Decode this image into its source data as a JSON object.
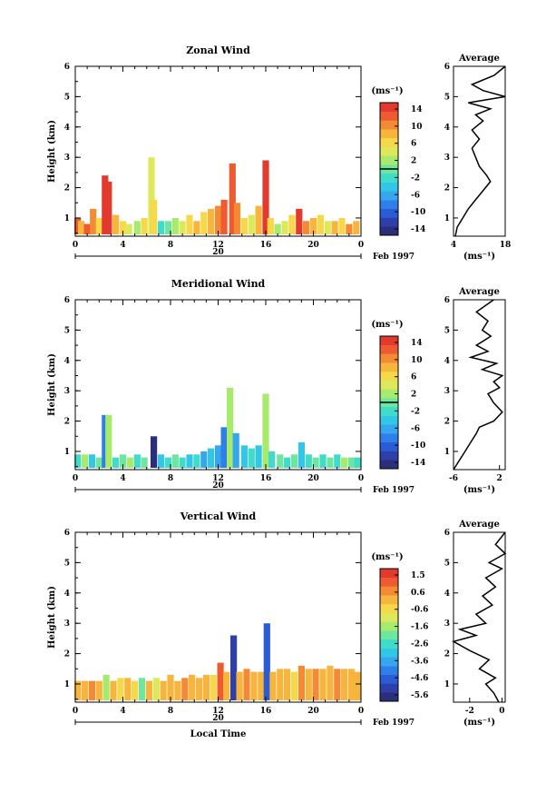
{
  "colormap": [
    "#2b2f7a",
    "#2d3fa8",
    "#2a5cd6",
    "#2f7fe8",
    "#36a7ef",
    "#33c6e6",
    "#40dcc9",
    "#6fe6a0",
    "#a8ea6c",
    "#dde85a",
    "#f6d84a",
    "#f8b53e",
    "#f58a35",
    "#ee5b30",
    "#e23a2d"
  ],
  "common": {
    "month_label": "Feb 1997",
    "day_label": "20",
    "unit_label": "(ms⁻¹)",
    "avg_title": "Average",
    "y_axis_label": "Height (km)",
    "x_axis_label": "Local Time",
    "x_ticks": [
      "0",
      "4",
      "8",
      "12",
      "16",
      "20",
      "0"
    ],
    "y_ticks": [
      "1",
      "2",
      "3",
      "4",
      "5",
      "6"
    ]
  },
  "chart_data": [
    {
      "type": "heatmap",
      "title": "Zonal Wind",
      "ylabel": "Height (km)",
      "xlim": [
        0,
        24
      ],
      "ylim": [
        0.4,
        6
      ],
      "colorbar": {
        "range": [
          -16,
          16
        ],
        "ticks": [
          "14",
          "10",
          "6",
          "2",
          "-2",
          "-6",
          "-10",
          "-14"
        ],
        "marker_value": 0
      },
      "columns": [
        {
          "t": 0.2,
          "top": 1.0,
          "v": 12
        },
        {
          "t": 0.5,
          "top": 0.9,
          "v": 8
        },
        {
          "t": 1.0,
          "top": 0.8,
          "v": 12
        },
        {
          "t": 1.5,
          "top": 1.3,
          "v": 10
        },
        {
          "t": 2.0,
          "top": 1.0,
          "v": 6
        },
        {
          "t": 2.5,
          "top": 2.4,
          "v": 15
        },
        {
          "t": 2.8,
          "top": 2.2,
          "v": 14
        },
        {
          "t": 3.4,
          "top": 1.1,
          "v": 8
        },
        {
          "t": 4.0,
          "top": 0.9,
          "v": 6
        },
        {
          "t": 4.5,
          "top": 0.8,
          "v": 4
        },
        {
          "t": 5.2,
          "top": 0.9,
          "v": 2
        },
        {
          "t": 5.8,
          "top": 1.0,
          "v": 6
        },
        {
          "t": 6.4,
          "top": 3.0,
          "v": 4
        },
        {
          "t": 6.6,
          "top": 1.6,
          "v": 6
        },
        {
          "t": 7.2,
          "top": 0.9,
          "v": -2
        },
        {
          "t": 7.8,
          "top": 0.9,
          "v": 0
        },
        {
          "t": 8.4,
          "top": 1.0,
          "v": 2
        },
        {
          "t": 9.0,
          "top": 0.9,
          "v": 4
        },
        {
          "t": 9.6,
          "top": 1.1,
          "v": 6
        },
        {
          "t": 10.2,
          "top": 0.9,
          "v": 8
        },
        {
          "t": 10.8,
          "top": 1.2,
          "v": 6
        },
        {
          "t": 11.4,
          "top": 1.3,
          "v": 8
        },
        {
          "t": 12.0,
          "top": 1.4,
          "v": 10
        },
        {
          "t": 12.5,
          "top": 1.6,
          "v": 12
        },
        {
          "t": 13.2,
          "top": 2.8,
          "v": 13
        },
        {
          "t": 13.6,
          "top": 1.5,
          "v": 10
        },
        {
          "t": 14.2,
          "top": 1.0,
          "v": 6
        },
        {
          "t": 14.8,
          "top": 1.1,
          "v": 4
        },
        {
          "t": 15.4,
          "top": 1.4,
          "v": 8
        },
        {
          "t": 16.0,
          "top": 2.9,
          "v": 14
        },
        {
          "t": 16.4,
          "top": 1.0,
          "v": 6
        },
        {
          "t": 17.0,
          "top": 0.8,
          "v": 2
        },
        {
          "t": 17.6,
          "top": 0.9,
          "v": 4
        },
        {
          "t": 18.2,
          "top": 1.1,
          "v": 6
        },
        {
          "t": 18.8,
          "top": 1.3,
          "v": 14
        },
        {
          "t": 19.4,
          "top": 0.9,
          "v": 10
        },
        {
          "t": 20.0,
          "top": 1.0,
          "v": 8
        },
        {
          "t": 20.6,
          "top": 1.1,
          "v": 6
        },
        {
          "t": 21.2,
          "top": 0.9,
          "v": 4
        },
        {
          "t": 21.8,
          "top": 0.9,
          "v": 8
        },
        {
          "t": 22.4,
          "top": 1.0,
          "v": 6
        },
        {
          "t": 23.0,
          "top": 0.8,
          "v": 10
        },
        {
          "t": 23.6,
          "top": 0.9,
          "v": 8
        }
      ],
      "profile": {
        "title": "Average",
        "xlabel": "(ms⁻¹)",
        "xlim": [
          4,
          18
        ],
        "xticks": [
          "4",
          "18"
        ],
        "points": [
          [
            4.5,
            0.4
          ],
          [
            5,
            0.7
          ],
          [
            6.5,
            1.0
          ],
          [
            8,
            1.3
          ],
          [
            10,
            1.6
          ],
          [
            12,
            1.9
          ],
          [
            14,
            2.2
          ],
          [
            13,
            2.4
          ],
          [
            11,
            2.7
          ],
          [
            10,
            3.0
          ],
          [
            9,
            3.3
          ],
          [
            11,
            3.6
          ],
          [
            9,
            3.9
          ],
          [
            12,
            4.2
          ],
          [
            10,
            4.4
          ],
          [
            14,
            4.6
          ],
          [
            8,
            4.8
          ],
          [
            18,
            5.0
          ],
          [
            12,
            5.2
          ],
          [
            9,
            5.4
          ],
          [
            15,
            5.7
          ],
          [
            18,
            6.0
          ]
        ]
      }
    },
    {
      "type": "heatmap",
      "title": "Meridional Wind",
      "ylabel": "Height (km)",
      "xlim": [
        0,
        24
      ],
      "ylim": [
        0.4,
        6
      ],
      "colorbar": {
        "range": [
          -16,
          16
        ],
        "ticks": [
          "14",
          "10",
          "6",
          "2",
          "-2",
          "-6",
          "-10",
          "-14"
        ],
        "marker_value": 0
      },
      "columns": [
        {
          "t": 0.2,
          "top": 0.9,
          "v": -2
        },
        {
          "t": 0.8,
          "top": 0.9,
          "v": 2
        },
        {
          "t": 1.4,
          "top": 0.9,
          "v": -4
        },
        {
          "t": 2.0,
          "top": 0.8,
          "v": 0
        },
        {
          "t": 2.5,
          "top": 2.2,
          "v": -8
        },
        {
          "t": 2.8,
          "top": 2.2,
          "v": 2
        },
        {
          "t": 3.4,
          "top": 0.8,
          "v": -2
        },
        {
          "t": 4.0,
          "top": 0.9,
          "v": 0
        },
        {
          "t": 4.6,
          "top": 0.8,
          "v": 2
        },
        {
          "t": 5.2,
          "top": 0.9,
          "v": -2
        },
        {
          "t": 5.8,
          "top": 0.8,
          "v": 0
        },
        {
          "t": 6.6,
          "top": 1.5,
          "v": -14
        },
        {
          "t": 7.2,
          "top": 0.9,
          "v": -4
        },
        {
          "t": 7.8,
          "top": 0.8,
          "v": -2
        },
        {
          "t": 8.4,
          "top": 0.9,
          "v": 0
        },
        {
          "t": 9.0,
          "top": 0.8,
          "v": -2
        },
        {
          "t": 9.6,
          "top": 0.9,
          "v": -4
        },
        {
          "t": 10.2,
          "top": 0.9,
          "v": -2
        },
        {
          "t": 10.8,
          "top": 1.0,
          "v": -6
        },
        {
          "t": 11.4,
          "top": 1.1,
          "v": -4
        },
        {
          "t": 12.0,
          "top": 1.2,
          "v": -6
        },
        {
          "t": 12.5,
          "top": 1.8,
          "v": -8
        },
        {
          "t": 13.0,
          "top": 3.1,
          "v": 2
        },
        {
          "t": 13.5,
          "top": 1.6,
          "v": -6
        },
        {
          "t": 14.2,
          "top": 1.2,
          "v": -4
        },
        {
          "t": 14.8,
          "top": 1.1,
          "v": -2
        },
        {
          "t": 15.4,
          "top": 1.2,
          "v": -4
        },
        {
          "t": 16.0,
          "top": 2.9,
          "v": 2
        },
        {
          "t": 16.5,
          "top": 1.0,
          "v": -2
        },
        {
          "t": 17.2,
          "top": 0.9,
          "v": 0
        },
        {
          "t": 17.8,
          "top": 0.8,
          "v": -2
        },
        {
          "t": 18.4,
          "top": 0.9,
          "v": 0
        },
        {
          "t": 19.0,
          "top": 1.3,
          "v": -4
        },
        {
          "t": 19.6,
          "top": 0.9,
          "v": -2
        },
        {
          "t": 20.2,
          "top": 0.8,
          "v": 0
        },
        {
          "t": 20.8,
          "top": 0.9,
          "v": -2
        },
        {
          "t": 21.4,
          "top": 0.8,
          "v": 0
        },
        {
          "t": 22.0,
          "top": 0.9,
          "v": -2
        },
        {
          "t": 22.6,
          "top": 0.8,
          "v": 2
        },
        {
          "t": 23.2,
          "top": 0.8,
          "v": 0
        },
        {
          "t": 23.7,
          "top": 0.8,
          "v": -2
        }
      ],
      "profile": {
        "title": "Average",
        "xlabel": "(ms⁻¹)",
        "xlim": [
          -6,
          3
        ],
        "xticks": [
          "-6",
          "2"
        ],
        "points": [
          [
            -6,
            0.4
          ],
          [
            -5,
            0.7
          ],
          [
            -4,
            1.0
          ],
          [
            -3,
            1.3
          ],
          [
            -2,
            1.6
          ],
          [
            -1.5,
            1.8
          ],
          [
            1,
            2.0
          ],
          [
            2.5,
            2.3
          ],
          [
            1,
            2.6
          ],
          [
            0,
            2.9
          ],
          [
            2,
            3.1
          ],
          [
            1,
            3.3
          ],
          [
            2.5,
            3.5
          ],
          [
            -1,
            3.7
          ],
          [
            1.5,
            3.9
          ],
          [
            -3,
            4.1
          ],
          [
            0,
            4.3
          ],
          [
            -2,
            4.5
          ],
          [
            0.5,
            4.8
          ],
          [
            -1,
            5.0
          ],
          [
            0,
            5.3
          ],
          [
            -2,
            5.6
          ],
          [
            1,
            6.0
          ]
        ]
      }
    },
    {
      "type": "heatmap",
      "title": "Vertical Wind",
      "ylabel": "Height (km)",
      "xlabel": "Local Time",
      "xlim": [
        0,
        24
      ],
      "ylim": [
        0.4,
        6
      ],
      "colorbar": {
        "range": [
          -6.5,
          2.5
        ],
        "ticks": [
          "1.5",
          "0.6",
          "-0.6",
          "-1.6",
          "-2.6",
          "-3.6",
          "-4.6",
          "-5.6"
        ],
        "marker_value": null
      },
      "columns": [
        {
          "t": 0.2,
          "top": 1.1,
          "v": 0.6
        },
        {
          "t": 0.8,
          "top": 1.1,
          "v": 0.3
        },
        {
          "t": 1.4,
          "top": 1.1,
          "v": 0.8
        },
        {
          "t": 2.0,
          "top": 1.1,
          "v": 0.2
        },
        {
          "t": 2.6,
          "top": 1.3,
          "v": -1.2
        },
        {
          "t": 3.2,
          "top": 1.1,
          "v": 0.4
        },
        {
          "t": 3.8,
          "top": 1.2,
          "v": -0.4
        },
        {
          "t": 4.4,
          "top": 1.2,
          "v": 0.6
        },
        {
          "t": 5.0,
          "top": 1.1,
          "v": 0.0
        },
        {
          "t": 5.6,
          "top": 1.2,
          "v": -2.0
        },
        {
          "t": 6.2,
          "top": 1.1,
          "v": 0.5
        },
        {
          "t": 6.8,
          "top": 1.2,
          "v": -0.6
        },
        {
          "t": 7.4,
          "top": 1.1,
          "v": 0.4
        },
        {
          "t": 8.0,
          "top": 1.3,
          "v": 0.6
        },
        {
          "t": 8.6,
          "top": 1.1,
          "v": 0.2
        },
        {
          "t": 9.2,
          "top": 1.2,
          "v": 0.8
        },
        {
          "t": 9.8,
          "top": 1.3,
          "v": 0.4
        },
        {
          "t": 10.4,
          "top": 1.2,
          "v": 0.6
        },
        {
          "t": 11.0,
          "top": 1.3,
          "v": 0.2
        },
        {
          "t": 11.6,
          "top": 1.3,
          "v": -0.2
        },
        {
          "t": 12.2,
          "top": 1.7,
          "v": 1.5
        },
        {
          "t": 12.7,
          "top": 1.4,
          "v": 0.6
        },
        {
          "t": 13.3,
          "top": 2.6,
          "v": -5.8
        },
        {
          "t": 13.8,
          "top": 1.4,
          "v": 0.4
        },
        {
          "t": 14.4,
          "top": 1.5,
          "v": 0.8
        },
        {
          "t": 15.0,
          "top": 1.4,
          "v": 0.4
        },
        {
          "t": 15.6,
          "top": 1.4,
          "v": 0.6
        },
        {
          "t": 16.1,
          "top": 3.0,
          "v": -4.8
        },
        {
          "t": 16.6,
          "top": 1.4,
          "v": 0.2
        },
        {
          "t": 17.2,
          "top": 1.5,
          "v": 0.6
        },
        {
          "t": 17.8,
          "top": 1.5,
          "v": 0.4
        },
        {
          "t": 18.4,
          "top": 1.4,
          "v": -0.2
        },
        {
          "t": 19.0,
          "top": 1.6,
          "v": 1.2
        },
        {
          "t": 19.6,
          "top": 1.5,
          "v": 0.4
        },
        {
          "t": 20.2,
          "top": 1.5,
          "v": 0.8
        },
        {
          "t": 20.8,
          "top": 1.5,
          "v": 0.6
        },
        {
          "t": 21.4,
          "top": 1.6,
          "v": 0.4
        },
        {
          "t": 22.0,
          "top": 1.5,
          "v": 0.8
        },
        {
          "t": 22.6,
          "top": 1.5,
          "v": 0.6
        },
        {
          "t": 23.2,
          "top": 1.5,
          "v": 0.4
        },
        {
          "t": 23.7,
          "top": 1.4,
          "v": 0.6
        }
      ],
      "profile": {
        "title": "Average",
        "xlabel": "(ms⁻¹)",
        "xlim": [
          -3,
          0.2
        ],
        "xticks": [
          "-2",
          "0"
        ],
        "points": [
          [
            -0.2,
            0.4
          ],
          [
            -0.5,
            0.7
          ],
          [
            -1.0,
            1.0
          ],
          [
            -0.4,
            1.2
          ],
          [
            -1.4,
            1.5
          ],
          [
            -0.8,
            1.8
          ],
          [
            -2.0,
            2.1
          ],
          [
            -3.0,
            2.4
          ],
          [
            -1.6,
            2.6
          ],
          [
            -2.6,
            2.8
          ],
          [
            -1.0,
            3.0
          ],
          [
            -1.6,
            3.3
          ],
          [
            -0.6,
            3.6
          ],
          [
            -1.2,
            3.9
          ],
          [
            -0.4,
            4.2
          ],
          [
            -1.0,
            4.5
          ],
          [
            0.0,
            4.8
          ],
          [
            -0.8,
            5.0
          ],
          [
            0.2,
            5.3
          ],
          [
            -0.4,
            5.6
          ],
          [
            0.2,
            6.0
          ]
        ]
      }
    }
  ]
}
